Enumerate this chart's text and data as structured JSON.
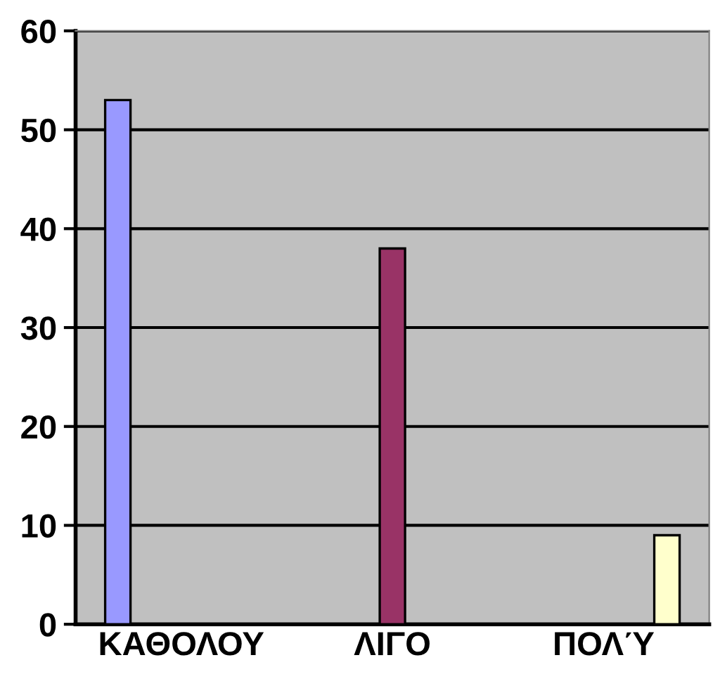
{
  "chart_data": {
    "type": "bar",
    "categories": [
      "ΚΑΘΟΛΟΥ",
      "ΛΙΓΟ",
      "ΠΟΛΎ"
    ],
    "series": [
      {
        "color": "#9999ff",
        "values": [
          53,
          null,
          null
        ]
      },
      {
        "color": "#993366",
        "values": [
          null,
          38,
          null
        ]
      },
      {
        "color": "#ffffcc",
        "values": [
          null,
          null,
          9
        ]
      }
    ],
    "ylim": [
      0,
      60
    ],
    "yticks": [
      0,
      10,
      20,
      30,
      40,
      50,
      60
    ],
    "grid": "y",
    "legend": false
  }
}
